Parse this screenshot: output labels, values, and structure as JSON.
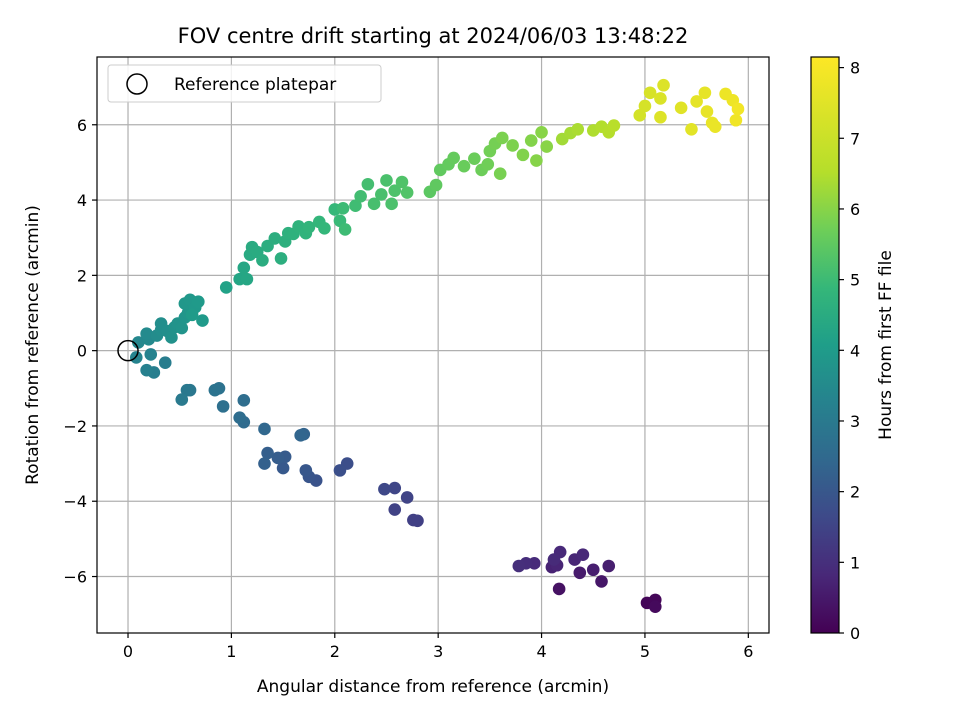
{
  "chart_data": {
    "type": "scatter",
    "title": "FOV centre drift starting at 2024/06/03 13:48:22",
    "xlabel": "Angular distance from reference (arcmin)",
    "ylabel": "Rotation from reference (arcmin)",
    "xlim": [
      -0.3,
      6.2
    ],
    "ylim": [
      -7.5,
      7.8
    ],
    "xticks": [
      0,
      1,
      2,
      3,
      4,
      5,
      6
    ],
    "yticks": [
      -6,
      -4,
      -2,
      0,
      2,
      4,
      6
    ],
    "xtick_labels": [
      "0",
      "1",
      "2",
      "3",
      "4",
      "5",
      "6"
    ],
    "ytick_labels": [
      "−6",
      "−4",
      "−2",
      "0",
      "2",
      "4",
      "6"
    ],
    "grid": true,
    "legend": {
      "position": "top-left",
      "entries": [
        "Reference platepar"
      ]
    },
    "reference_point": {
      "x": 0,
      "y": 0
    },
    "colorbar": {
      "label": "Hours from first FF file",
      "colormap": "viridis",
      "range": [
        0,
        8.15
      ],
      "ticks": [
        0,
        1,
        2,
        3,
        4,
        5,
        6,
        7,
        8
      ],
      "tick_labels": [
        "0",
        "1",
        "2",
        "3",
        "4",
        "5",
        "6",
        "7",
        "8"
      ]
    },
    "points": [
      [
        5.02,
        -6.7,
        0.08
      ],
      [
        5.1,
        -6.62,
        0.12
      ],
      [
        5.1,
        -6.8,
        0.18
      ],
      [
        4.17,
        -6.33,
        0.35
      ],
      [
        4.58,
        -6.13,
        0.45
      ],
      [
        4.37,
        -5.9,
        0.55
      ],
      [
        4.5,
        -5.82,
        0.6
      ],
      [
        4.65,
        -5.72,
        0.62
      ],
      [
        4.1,
        -5.75,
        0.7
      ],
      [
        4.15,
        -5.7,
        0.75
      ],
      [
        4.32,
        -5.55,
        0.78
      ],
      [
        4.4,
        -5.42,
        0.82
      ],
      [
        4.18,
        -5.35,
        0.85
      ],
      [
        4.12,
        -5.55,
        0.88
      ],
      [
        3.93,
        -5.65,
        0.9
      ],
      [
        3.85,
        -5.65,
        0.95
      ],
      [
        3.78,
        -5.72,
        0.98
      ],
      [
        2.8,
        -4.52,
        1.4
      ],
      [
        2.76,
        -4.5,
        1.42
      ],
      [
        2.58,
        -4.22,
        1.45
      ],
      [
        2.7,
        -3.9,
        1.5
      ],
      [
        2.58,
        -3.65,
        1.55
      ],
      [
        2.48,
        -3.68,
        1.6
      ],
      [
        2.12,
        -3.0,
        1.75
      ],
      [
        2.05,
        -3.18,
        1.8
      ],
      [
        1.82,
        -3.45,
        1.9
      ],
      [
        1.75,
        -3.35,
        1.95
      ],
      [
        1.72,
        -3.18,
        2.0
      ],
      [
        1.5,
        -3.12,
        2.05
      ],
      [
        1.52,
        -2.82,
        2.1
      ],
      [
        1.45,
        -2.85,
        2.15
      ],
      [
        1.35,
        -2.72,
        2.2
      ],
      [
        1.32,
        -3.0,
        2.25
      ],
      [
        1.7,
        -2.22,
        2.35
      ],
      [
        1.67,
        -2.25,
        2.4
      ],
      [
        1.32,
        -2.08,
        2.45
      ],
      [
        1.12,
        -1.9,
        2.55
      ],
      [
        1.08,
        -1.78,
        2.6
      ],
      [
        1.12,
        -1.32,
        2.62
      ],
      [
        0.92,
        -1.48,
        2.7
      ],
      [
        0.88,
        -1.0,
        2.75
      ],
      [
        0.84,
        -1.05,
        2.8
      ],
      [
        0.6,
        -1.05,
        2.9
      ],
      [
        0.57,
        -1.05,
        2.95
      ],
      [
        0.52,
        -1.3,
        3.0
      ],
      [
        0.36,
        -0.32,
        3.1
      ],
      [
        0.25,
        -0.58,
        3.15
      ],
      [
        0.18,
        -0.52,
        3.2
      ],
      [
        0.22,
        -0.1,
        3.25
      ],
      [
        0.08,
        -0.18,
        3.3
      ],
      [
        0.1,
        0.22,
        3.4
      ],
      [
        0.2,
        0.3,
        3.45
      ],
      [
        0.18,
        0.45,
        3.5
      ],
      [
        0.28,
        0.4,
        3.55
      ],
      [
        0.32,
        0.55,
        3.6
      ],
      [
        0.32,
        0.72,
        3.62
      ],
      [
        0.38,
        0.52,
        3.65
      ],
      [
        0.42,
        0.35,
        3.7
      ],
      [
        0.45,
        0.62,
        3.72
      ],
      [
        0.48,
        0.72,
        3.75
      ],
      [
        0.52,
        0.6,
        3.78
      ],
      [
        0.55,
        0.88,
        3.8
      ],
      [
        0.58,
        1.0,
        3.85
      ],
      [
        0.55,
        1.25,
        3.88
      ],
      [
        0.6,
        1.35,
        3.9
      ],
      [
        0.65,
        1.15,
        3.92
      ],
      [
        0.68,
        1.3,
        3.95
      ],
      [
        0.72,
        0.8,
        3.97
      ],
      [
        0.62,
        0.95,
        4.0
      ],
      [
        0.95,
        1.68,
        4.2
      ],
      [
        1.08,
        1.9,
        4.3
      ],
      [
        1.12,
        2.2,
        4.32
      ],
      [
        1.15,
        1.9,
        4.35
      ],
      [
        1.18,
        2.55,
        4.45
      ],
      [
        1.2,
        2.75,
        4.48
      ],
      [
        1.25,
        2.62,
        4.5
      ],
      [
        1.3,
        2.4,
        4.52
      ],
      [
        1.35,
        2.78,
        4.55
      ],
      [
        1.42,
        2.98,
        4.58
      ],
      [
        1.48,
        2.45,
        4.6
      ],
      [
        1.52,
        2.9,
        4.62
      ],
      [
        1.55,
        3.12,
        4.65
      ],
      [
        1.6,
        3.1,
        4.68
      ],
      [
        1.65,
        3.3,
        4.72
      ],
      [
        1.72,
        3.12,
        4.75
      ],
      [
        1.75,
        3.28,
        4.78
      ],
      [
        1.85,
        3.42,
        4.82
      ],
      [
        1.9,
        3.25,
        4.85
      ],
      [
        2.0,
        3.75,
        4.9
      ],
      [
        2.05,
        3.45,
        4.95
      ],
      [
        2.08,
        3.78,
        5.0
      ],
      [
        2.1,
        3.22,
        5.02
      ],
      [
        2.2,
        3.85,
        5.05
      ],
      [
        2.25,
        4.1,
        5.08
      ],
      [
        2.32,
        4.42,
        5.12
      ],
      [
        2.38,
        3.9,
        5.15
      ],
      [
        2.45,
        4.15,
        5.18
      ],
      [
        2.5,
        4.52,
        5.2
      ],
      [
        2.55,
        3.9,
        5.22
      ],
      [
        2.58,
        4.25,
        5.25
      ],
      [
        2.65,
        4.48,
        5.28
      ],
      [
        2.7,
        4.2,
        5.3
      ],
      [
        2.92,
        4.22,
        5.45
      ],
      [
        2.98,
        4.4,
        5.5
      ],
      [
        3.02,
        4.8,
        5.52
      ],
      [
        3.1,
        4.95,
        5.55
      ],
      [
        3.15,
        5.12,
        5.58
      ],
      [
        3.25,
        4.9,
        5.62
      ],
      [
        3.35,
        5.1,
        5.65
      ],
      [
        3.42,
        4.8,
        5.68
      ],
      [
        3.48,
        4.95,
        5.72
      ],
      [
        3.5,
        5.3,
        5.75
      ],
      [
        3.55,
        5.5,
        5.78
      ],
      [
        3.6,
        4.7,
        5.82
      ],
      [
        3.62,
        5.65,
        5.85
      ],
      [
        3.72,
        5.45,
        5.88
      ],
      [
        3.82,
        5.2,
        5.92
      ],
      [
        3.9,
        5.58,
        5.95
      ],
      [
        3.95,
        5.05,
        5.98
      ],
      [
        4.0,
        5.8,
        6.0
      ],
      [
        4.05,
        5.42,
        6.02
      ],
      [
        4.2,
        5.62,
        6.3
      ],
      [
        4.28,
        5.78,
        6.35
      ],
      [
        4.35,
        5.88,
        6.4
      ],
      [
        4.5,
        5.85,
        6.45
      ],
      [
        4.58,
        5.95,
        6.5
      ],
      [
        4.65,
        5.8,
        6.55
      ],
      [
        4.7,
        5.98,
        6.6
      ],
      [
        4.95,
        6.25,
        7.2
      ],
      [
        5.0,
        6.5,
        7.25
      ],
      [
        5.05,
        6.85,
        7.3
      ],
      [
        5.15,
        6.7,
        7.35
      ],
      [
        5.18,
        7.05,
        7.4
      ],
      [
        5.15,
        6.2,
        7.42
      ],
      [
        5.35,
        6.45,
        7.5
      ],
      [
        5.45,
        5.88,
        7.55
      ],
      [
        5.5,
        6.62,
        7.6
      ],
      [
        5.58,
        6.85,
        7.62
      ],
      [
        5.6,
        6.35,
        7.65
      ],
      [
        5.65,
        6.05,
        7.7
      ],
      [
        5.68,
        5.95,
        7.72
      ],
      [
        5.78,
        6.82,
        7.78
      ],
      [
        5.85,
        6.65,
        7.82
      ],
      [
        5.88,
        6.12,
        7.85
      ],
      [
        5.9,
        6.42,
        7.9
      ]
    ]
  }
}
